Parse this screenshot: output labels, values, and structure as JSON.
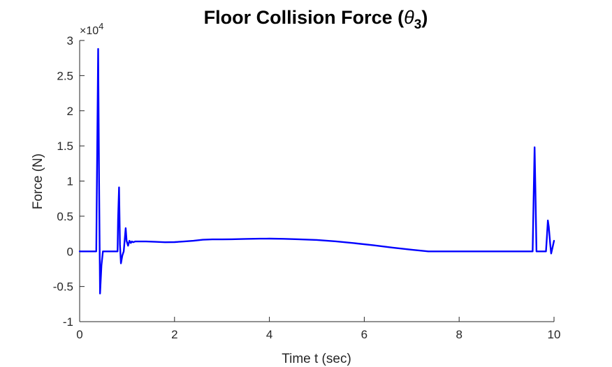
{
  "chart_data": {
    "type": "line",
    "title": "Floor Collision Force (",
    "title_symbol": "θ",
    "title_subscript": "3",
    "title_suffix": ")",
    "xlabel": "Time t (sec)",
    "ylabel": "Force (N)",
    "xlim": [
      0,
      10
    ],
    "ylim": [
      -10000,
      30000
    ],
    "xticks": [
      0,
      2,
      4,
      6,
      8,
      10
    ],
    "xtick_labels": [
      "0",
      "2",
      "4",
      "6",
      "8",
      "10"
    ],
    "yticks": [
      -10000,
      -5000,
      0,
      5000,
      10000,
      15000,
      20000,
      25000,
      30000
    ],
    "ytick_labels": [
      "-1",
      "-0.5",
      "0",
      "0.5",
      "1",
      "1.5",
      "2",
      "2.5",
      "3"
    ],
    "y_exponent_prefix": "×10",
    "y_exponent_power": "4",
    "grid": false,
    "box": false,
    "line_color": "#0000ff",
    "series": [
      {
        "x": [
          0,
          0.35,
          0.37,
          0.39,
          0.41,
          0.43,
          0.46,
          0.49,
          0.52,
          0.8,
          0.81,
          0.83,
          0.85,
          0.87,
          0.9,
          0.93,
          0.97,
          0.99,
          1.02,
          1.05,
          1.08,
          1.1,
          1.13,
          1.17,
          1.25,
          1.4,
          1.6,
          1.8,
          2.0,
          2.2,
          2.4,
          2.6,
          2.8,
          3.0,
          3.2,
          3.5,
          3.8,
          4.0,
          4.3,
          4.6,
          5.0,
          5.4,
          5.8,
          6.2,
          6.6,
          7.0,
          7.35,
          7.6,
          8.0,
          8.5,
          9.0,
          9.3,
          9.55,
          9.57,
          9.59,
          9.61,
          9.63,
          9.66,
          9.83,
          9.85,
          9.87,
          9.89,
          9.92,
          9.94,
          9.97,
          10.0
        ],
        "y": [
          0,
          0,
          14000,
          28800,
          10000,
          -6000,
          -2000,
          0,
          0,
          0,
          4500,
          9100,
          1000,
          -1700,
          -600,
          0,
          3300,
          1500,
          800,
          1500,
          1200,
          1400,
          1300,
          1400,
          1400,
          1400,
          1350,
          1300,
          1320,
          1400,
          1500,
          1650,
          1700,
          1700,
          1720,
          1770,
          1800,
          1810,
          1780,
          1720,
          1620,
          1420,
          1160,
          860,
          530,
          230,
          0,
          0,
          0,
          0,
          0,
          0,
          0,
          7500,
          14800,
          8000,
          0,
          0,
          0,
          2000,
          4400,
          3500,
          1000,
          -300,
          600,
          1500
        ]
      }
    ]
  }
}
